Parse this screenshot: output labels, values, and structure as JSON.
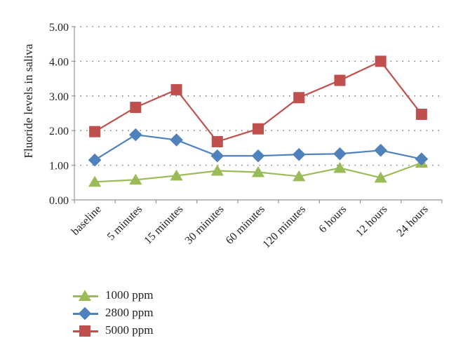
{
  "chart_data": {
    "type": "line",
    "ylabel": "Fluoride levels in saliva",
    "xlabel": "",
    "categories": [
      "baseline",
      "5 minutes",
      "15 minutes",
      "30 minutes",
      "60 minutes",
      "120 minutes",
      "6 hours",
      "12 hours",
      "24 hours"
    ],
    "ylim": [
      0,
      5
    ],
    "yticks": [
      "0.00",
      "1.00",
      "2.00",
      "3.00",
      "4.00",
      "5.00"
    ],
    "grid": "horizontal dotted",
    "legend_position": "bottom-left",
    "series": [
      {
        "name": "1000 ppm",
        "values": [
          0.52,
          0.58,
          0.7,
          0.84,
          0.8,
          0.68,
          0.92,
          0.64,
          1.07
        ],
        "color": "#9bbb59",
        "marker": "triangle"
      },
      {
        "name": "2800 ppm",
        "values": [
          1.15,
          1.88,
          1.73,
          1.27,
          1.27,
          1.31,
          1.33,
          1.43,
          1.18
        ],
        "color": "#4f81bd",
        "marker": "diamond"
      },
      {
        "name": "5000 ppm",
        "values": [
          1.97,
          2.67,
          3.18,
          1.68,
          2.05,
          2.95,
          3.45,
          4.0,
          2.47
        ],
        "color": "#c0504d",
        "marker": "square"
      }
    ]
  }
}
